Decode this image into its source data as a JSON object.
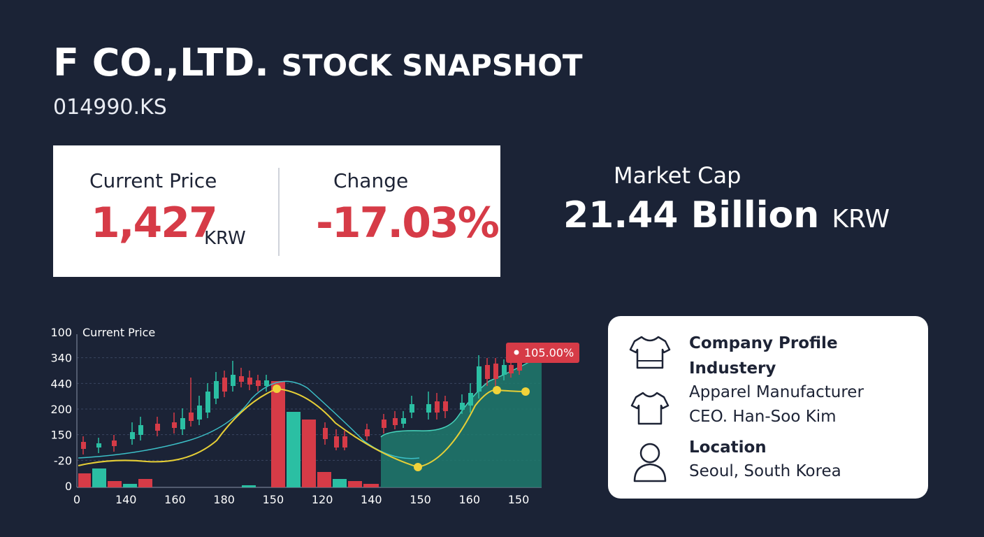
{
  "header": {
    "title": "F CO.,LTD.",
    "title_suffix": "STOCK SNAPSHOT",
    "ticker": "014990.KS"
  },
  "price_card": {
    "current_price": {
      "label": "Current Price",
      "value": "1,427",
      "unit": "KRW"
    },
    "change": {
      "label": "Change",
      "value": "-17.03%"
    }
  },
  "market_cap": {
    "label": "Market Cap",
    "value": "21.44 Billion",
    "unit": "KRW"
  },
  "chart": {
    "label": "Current Price",
    "badge": "105.00%",
    "y_labels": [
      "100",
      "340",
      "440",
      "200",
      "150",
      "-20",
      "0"
    ],
    "x_labels": [
      "0",
      "140",
      "160",
      "180",
      "150",
      "120",
      "140",
      "150",
      "160",
      "150"
    ]
  },
  "profile": {
    "title": "Company Profile",
    "industry_label": "Industery",
    "industry": "Apparel Manufacturer",
    "ceo": "CEO. Han-Soo Kim",
    "location_label": "Location",
    "location": "Seoul, South Korea"
  }
}
